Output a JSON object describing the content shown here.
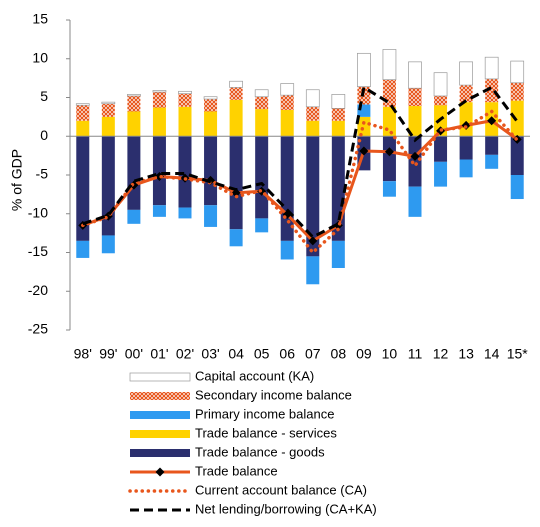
{
  "chart_data": {
    "type": "bar",
    "y_label": "% of GDP",
    "categories": [
      "98'",
      "99'",
      "00'",
      "01'",
      "02'",
      "03'",
      "04",
      "05",
      "06",
      "07",
      "08",
      "09",
      "10",
      "11",
      "12",
      "13",
      "14",
      "15*"
    ],
    "ylim": [
      -25,
      15
    ],
    "yticks": [
      -25,
      -20,
      -15,
      -10,
      -5,
      0,
      5,
      10,
      15
    ],
    "series": [
      {
        "name": "Capital account (KA)",
        "kind": "bar",
        "color": "#ffffff",
        "values": [
          0.2,
          0.2,
          0.2,
          0.2,
          0.3,
          0.3,
          0.8,
          0.9,
          1.5,
          2.2,
          1.8,
          4.3,
          3.9,
          3.4,
          3.0,
          3.0,
          2.8,
          2.8
        ]
      },
      {
        "name": "Secondary income balance",
        "kind": "bar",
        "pattern": "hatch",
        "color": "#e8561c",
        "values": [
          2.0,
          1.7,
          2.0,
          2.0,
          1.7,
          1.6,
          1.6,
          1.6,
          1.9,
          1.8,
          1.6,
          2.3,
          3.5,
          2.3,
          1.2,
          2.2,
          3.0,
          2.3
        ]
      },
      {
        "name": "Primary income balance",
        "kind": "bar",
        "color": "#2e9af0",
        "values": [
          -2.2,
          -2.3,
          -1.8,
          -1.5,
          -1.4,
          -2.8,
          -2.2,
          -1.8,
          -2.4,
          -3.6,
          -3.5,
          1.6,
          -2.0,
          -3.9,
          -3.2,
          -2.3,
          -1.8,
          -3.1
        ]
      },
      {
        "name": "Trade balance - services",
        "kind": "bar",
        "color": "#ffd200",
        "values": [
          2.0,
          2.5,
          3.2,
          3.7,
          3.8,
          3.2,
          4.7,
          3.5,
          3.4,
          2.0,
          2.0,
          2.5,
          3.8,
          3.9,
          4.0,
          4.4,
          4.4,
          4.6
        ]
      },
      {
        "name": "Trade balance - goods",
        "kind": "bar",
        "color": "#2b2f6e",
        "values": [
          -13.5,
          -12.8,
          -9.5,
          -8.9,
          -9.2,
          -8.9,
          -12.0,
          -10.6,
          -13.5,
          -15.5,
          -13.5,
          -4.4,
          -5.8,
          -6.5,
          -3.3,
          -3.0,
          -2.4,
          -5.0
        ]
      },
      {
        "name": "Trade balance",
        "kind": "line",
        "style": "solid",
        "marker": "diamond",
        "color": "#e8561c",
        "values": [
          -11.5,
          -10.3,
          -6.3,
          -5.2,
          -5.4,
          -5.7,
          -7.3,
          -7.1,
          -10.1,
          -13.5,
          -11.5,
          -1.9,
          -2.0,
          -2.6,
          0.7,
          1.4,
          2.0,
          -0.4
        ]
      },
      {
        "name": "Current account balance (CA)",
        "kind": "line",
        "style": "dotted",
        "color": "#e8561c",
        "values": [
          -11.5,
          -10.4,
          -6.0,
          -5.2,
          -5.5,
          -6.0,
          -7.8,
          -7.0,
          -10.8,
          -15.0,
          -12.0,
          1.8,
          0.8,
          -3.8,
          0.8,
          1.2,
          3.2,
          -0.5
        ]
      },
      {
        "name": "Net lending/borrowing (CA+KA)",
        "kind": "line",
        "style": "dashed",
        "color": "#000000",
        "values": [
          -11.3,
          -10.2,
          -5.8,
          -4.8,
          -4.8,
          -5.9,
          -6.9,
          -6.1,
          -9.5,
          -13.0,
          -11.3,
          6.3,
          4.3,
          -0.5,
          2.2,
          4.6,
          6.3,
          1.9
        ]
      }
    ]
  }
}
